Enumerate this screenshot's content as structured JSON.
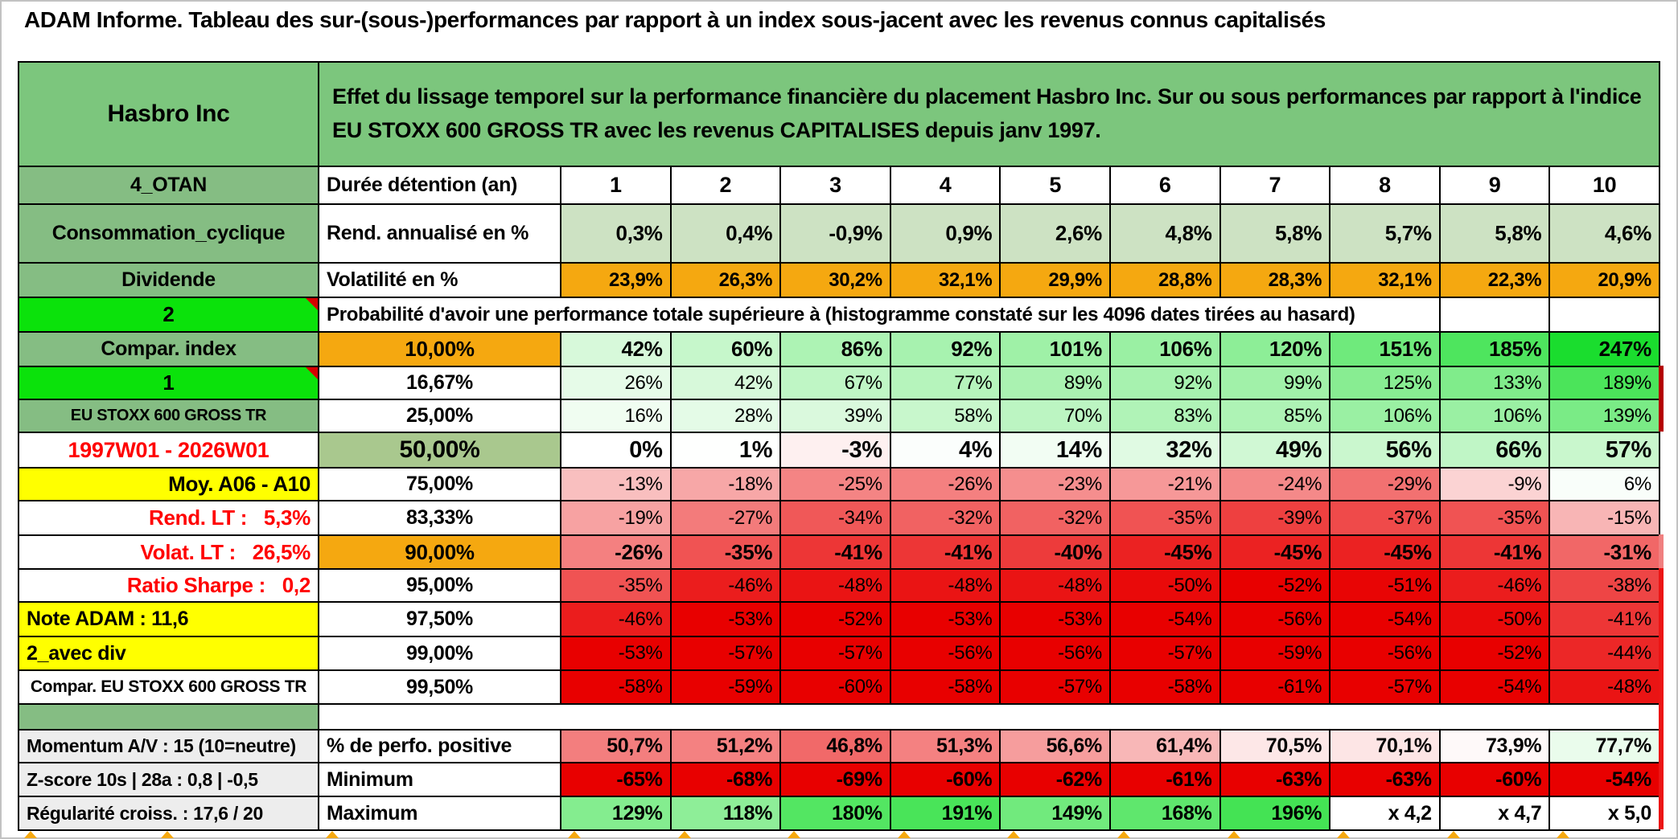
{
  "title": "ADAM Informe. Tableau des sur-(sous-)performances par rapport à un index sous-jacent avec les revenus connus capitalisés",
  "header": {
    "instrument": "Hasbro Inc",
    "description": "Effet du lissage temporel sur la performance financière du placement Hasbro Inc. Sur ou sous performances par rapport à l'indice EU STOXX 600 GROSS TR avec les revenus CAPITALISES depuis janv 1997."
  },
  "colors": {
    "green_header": "#7CC67D",
    "green_label": "#85BD83",
    "green_olive": "#A9C88E",
    "green_bright": "#0BE20B",
    "orange": "#F5A810",
    "yellow": "#FFFF00",
    "gray": "#EDEDED",
    "sage": "#CDE2C3",
    "red_text": "#FF0000",
    "marker_red": "#D60000",
    "edge_strip_dark_red": "#B40000",
    "edge_strip_pink": "#F08080",
    "edge_strip_red": "#EC1515",
    "border": "#000000"
  },
  "table": {
    "rows": [
      {
        "id": "duree",
        "left": {
          "t": "4_OTAN",
          "bg": "label",
          "fs": 25,
          "al": "c"
        },
        "mid": {
          "t": "Durée détention (an)",
          "fs": 25,
          "al": "l"
        },
        "mode": "text",
        "bold": true,
        "al": "c",
        "fs": 27,
        "cells": [
          "1",
          "2",
          "3",
          "4",
          "5",
          "6",
          "7",
          "8",
          "9",
          "10"
        ]
      },
      {
        "id": "rend",
        "left": {
          "t": "Consommation_cyclique",
          "bg": "label",
          "fs": 25,
          "al": "c"
        },
        "mid": {
          "t": "Rend. annualisé en %",
          "fs": 25,
          "al": "l"
        },
        "mode": "fixed",
        "bg": "sage",
        "bold": true,
        "al": "r",
        "fs": 26,
        "cells": [
          "0,3%",
          "0,4%",
          "-0,9%",
          "0,9%",
          "2,6%",
          "4,8%",
          "5,8%",
          "5,7%",
          "5,8%",
          "4,6%"
        ]
      },
      {
        "id": "volat",
        "left": {
          "t": "Dividende",
          "bg": "label",
          "fs": 25,
          "al": "c"
        },
        "mid": {
          "t": "Volatilité en %",
          "fs": 25,
          "al": "l"
        },
        "mode": "fixed",
        "bg": "orange",
        "bold": true,
        "al": "r",
        "fs": 24,
        "cells": [
          "23,9%",
          "26,3%",
          "30,2%",
          "32,1%",
          "29,9%",
          "28,8%",
          "28,3%",
          "32,1%",
          "22,3%",
          "20,9%"
        ]
      },
      {
        "id": "proba",
        "type": "span",
        "left": {
          "t": "2",
          "bg": "bright",
          "fs": 26,
          "al": "c",
          "marker": true
        },
        "span": {
          "t": "Probabilité d'avoir une performance totale supérieure à (histogramme constaté sur les 4096 dates tirées au hasard)",
          "fs": 24
        }
      },
      {
        "id": "p10",
        "left": {
          "t": "Compar. index",
          "bg": "label",
          "fs": 25,
          "al": "c"
        },
        "mid": {
          "t": "10,00%",
          "bg": "orange",
          "fs": 26,
          "al": "c"
        },
        "mode": "heat",
        "bold": true,
        "al": "r",
        "fs": 26,
        "cells": [
          "42%",
          "60%",
          "86%",
          "92%",
          "101%",
          "106%",
          "120%",
          "151%",
          "185%",
          "247%"
        ]
      },
      {
        "id": "p16",
        "left": {
          "t": "1",
          "bg": "bright",
          "fs": 26,
          "al": "c",
          "marker": true
        },
        "mid": {
          "t": "16,67%",
          "fs": 25,
          "al": "c"
        },
        "mode": "heat",
        "bold": false,
        "al": "r",
        "fs": 24,
        "cells": [
          "26%",
          "42%",
          "67%",
          "77%",
          "89%",
          "92%",
          "99%",
          "125%",
          "133%",
          "189%"
        ]
      },
      {
        "id": "p25",
        "left": {
          "t": "EU STOXX 600 GROSS TR",
          "bg": "label",
          "fs": 20,
          "al": "c"
        },
        "mid": {
          "t": "25,00%",
          "fs": 25,
          "al": "c"
        },
        "mode": "heat",
        "bold": false,
        "al": "r",
        "fs": 24,
        "cells": [
          "16%",
          "28%",
          "39%",
          "58%",
          "70%",
          "83%",
          "85%",
          "106%",
          "106%",
          "139%"
        ]
      },
      {
        "id": "p50",
        "left": {
          "t": "1997W01 - 2026W01",
          "color": "#FF0000",
          "fs": 27,
          "al": "c"
        },
        "mid": {
          "t": "50,00%",
          "bg": "olive",
          "fs": 30,
          "al": "c"
        },
        "mode": "heat",
        "bold": true,
        "al": "r",
        "fs": 29,
        "cells": [
          "0%",
          "1%",
          "-3%",
          "4%",
          "14%",
          "32%",
          "49%",
          "56%",
          "66%",
          "57%"
        ]
      },
      {
        "id": "p75",
        "left": {
          "t": "Moy. A06 - A10",
          "bg": "yellow",
          "fs": 26,
          "al": "r"
        },
        "mid": {
          "t": "75,00%",
          "fs": 25,
          "al": "c"
        },
        "mode": "heat",
        "bold": false,
        "al": "r",
        "fs": 24,
        "cells": [
          "-13%",
          "-18%",
          "-25%",
          "-26%",
          "-23%",
          "-21%",
          "-24%",
          "-29%",
          "-9%",
          "6%"
        ]
      },
      {
        "id": "p83",
        "left": {
          "t": "Rend. LT :   5,3%",
          "color": "#FF0000",
          "fs": 26,
          "al": "r"
        },
        "mid": {
          "t": "83,33%",
          "fs": 25,
          "al": "c"
        },
        "mode": "heat",
        "bold": false,
        "al": "r",
        "fs": 24,
        "cells": [
          "-19%",
          "-27%",
          "-34%",
          "-32%",
          "-32%",
          "-35%",
          "-39%",
          "-37%",
          "-35%",
          "-15%"
        ]
      },
      {
        "id": "p90",
        "left": {
          "t": "Volat. LT :   26,5%",
          "color": "#FF0000",
          "fs": 26,
          "al": "r"
        },
        "mid": {
          "t": "90,00%",
          "bg": "orange",
          "fs": 26,
          "al": "c"
        },
        "mode": "heat",
        "bold": true,
        "al": "r",
        "fs": 26,
        "cells": [
          "-26%",
          "-35%",
          "-41%",
          "-41%",
          "-40%",
          "-45%",
          "-45%",
          "-45%",
          "-41%",
          "-31%"
        ]
      },
      {
        "id": "p95",
        "left": {
          "t": "Ratio Sharpe :   0,2",
          "color": "#FF0000",
          "fs": 26,
          "al": "r"
        },
        "mid": {
          "t": "95,00%",
          "fs": 25,
          "al": "c"
        },
        "mode": "heat",
        "bold": false,
        "al": "r",
        "fs": 24,
        "cells": [
          "-35%",
          "-46%",
          "-48%",
          "-48%",
          "-48%",
          "-50%",
          "-52%",
          "-51%",
          "-46%",
          "-38%"
        ]
      },
      {
        "id": "p975",
        "left": {
          "t": "Note ADAM : 11,6",
          "bg": "yellow",
          "fs": 25,
          "al": "l"
        },
        "mid": {
          "t": "97,50%",
          "fs": 25,
          "al": "c"
        },
        "mode": "heat",
        "bold": false,
        "al": "r",
        "fs": 24,
        "cells": [
          "-46%",
          "-53%",
          "-52%",
          "-53%",
          "-53%",
          "-54%",
          "-56%",
          "-54%",
          "-50%",
          "-41%"
        ]
      },
      {
        "id": "p99",
        "left": {
          "t": "2_avec div",
          "bg": "yellow",
          "fs": 25,
          "al": "l"
        },
        "mid": {
          "t": "99,00%",
          "fs": 25,
          "al": "c"
        },
        "mode": "heat",
        "bold": false,
        "al": "r",
        "fs": 24,
        "cells": [
          "-53%",
          "-57%",
          "-57%",
          "-56%",
          "-56%",
          "-57%",
          "-59%",
          "-56%",
          "-52%",
          "-44%"
        ]
      },
      {
        "id": "p995",
        "left": {
          "t": "Compar. EU STOXX 600 GROSS TR",
          "fs": 21,
          "al": "c"
        },
        "mid": {
          "t": "99,50%",
          "fs": 25,
          "al": "c"
        },
        "mode": "heat",
        "bold": false,
        "al": "r",
        "fs": 24,
        "cells": [
          "-58%",
          "-59%",
          "-60%",
          "-58%",
          "-57%",
          "-58%",
          "-61%",
          "-57%",
          "-54%",
          "-48%"
        ]
      },
      {
        "id": "sep",
        "type": "separator",
        "left": {
          "t": "",
          "bg": "label"
        }
      },
      {
        "id": "perfo",
        "left": {
          "t": "Momentum A/V : 15 (10=neutre)",
          "bg": "gray",
          "fs": 23,
          "al": "l"
        },
        "mid": {
          "t": "% de perfo. positive",
          "fs": 25,
          "al": "l"
        },
        "mode": "perfo",
        "bold": true,
        "al": "r",
        "fs": 25,
        "cells": [
          "50,7%",
          "51,2%",
          "46,8%",
          "51,3%",
          "56,6%",
          "61,4%",
          "70,5%",
          "70,1%",
          "73,9%",
          "77,7%"
        ]
      },
      {
        "id": "min",
        "left": {
          "t": "Z-score 10s | 28a : 0,8 | -0,5",
          "bg": "gray",
          "fs": 23,
          "al": "l"
        },
        "mid": {
          "t": "Minimum",
          "fs": 25,
          "al": "l"
        },
        "mode": "heat",
        "bold": true,
        "al": "r",
        "fs": 25,
        "cells": [
          "-65%",
          "-68%",
          "-69%",
          "-60%",
          "-62%",
          "-61%",
          "-63%",
          "-63%",
          "-60%",
          "-54%"
        ]
      },
      {
        "id": "max",
        "left": {
          "t": "Régularité croiss. : 17,6 / 20",
          "bg": "gray",
          "fs": 23,
          "al": "l"
        },
        "mid": {
          "t": "Maximum",
          "fs": 25,
          "al": "l"
        },
        "mode": "heat",
        "bold": true,
        "al": "r",
        "fs": 25,
        "cells": [
          "129%",
          "118%",
          "180%",
          "191%",
          "149%",
          "168%",
          "196%",
          "x 4,2",
          "x 4,7",
          "x 5,0"
        ]
      }
    ]
  },
  "chart_data": {
    "type": "heatmap",
    "title": "Effet du lissage temporel sur la performance financière du placement Hasbro Inc. Sur ou sous performances par rapport à l'indice EU STOXX 600 GROSS TR avec les revenus CAPITALISES depuis janv 1997.",
    "xlabel": "Durée détention (an)",
    "x": [
      1,
      2,
      3,
      4,
      5,
      6,
      7,
      8,
      9,
      10
    ],
    "note": "Probabilité d'avoir une performance totale supérieure à (histogramme constaté sur les 4096 dates tirées au hasard)",
    "series": [
      {
        "name": "Rend. annualisé en %",
        "values": [
          0.3,
          0.4,
          -0.9,
          0.9,
          2.6,
          4.8,
          5.8,
          5.7,
          5.8,
          4.6
        ]
      },
      {
        "name": "Volatilité en %",
        "values": [
          23.9,
          26.3,
          30.2,
          32.1,
          29.9,
          28.8,
          28.3,
          32.1,
          22.3,
          20.9
        ]
      },
      {
        "name": "Percentile 10,00%",
        "values": [
          42,
          60,
          86,
          92,
          101,
          106,
          120,
          151,
          185,
          247
        ]
      },
      {
        "name": "Percentile 16,67%",
        "values": [
          26,
          42,
          67,
          77,
          89,
          92,
          99,
          125,
          133,
          189
        ]
      },
      {
        "name": "Percentile 25,00%",
        "values": [
          16,
          28,
          39,
          58,
          70,
          83,
          85,
          106,
          106,
          139
        ]
      },
      {
        "name": "Percentile 50,00%",
        "values": [
          0,
          1,
          -3,
          4,
          14,
          32,
          49,
          56,
          66,
          57
        ]
      },
      {
        "name": "Percentile 75,00%",
        "values": [
          -13,
          -18,
          -25,
          -26,
          -23,
          -21,
          -24,
          -29,
          -9,
          6
        ]
      },
      {
        "name": "Percentile 83,33%",
        "values": [
          -19,
          -27,
          -34,
          -32,
          -32,
          -35,
          -39,
          -37,
          -35,
          -15
        ]
      },
      {
        "name": "Percentile 90,00%",
        "values": [
          -26,
          -35,
          -41,
          -41,
          -40,
          -45,
          -45,
          -45,
          -41,
          -31
        ]
      },
      {
        "name": "Percentile 95,00%",
        "values": [
          -35,
          -46,
          -48,
          -48,
          -48,
          -50,
          -52,
          -51,
          -46,
          -38
        ]
      },
      {
        "name": "Percentile 97,50%",
        "values": [
          -46,
          -53,
          -52,
          -53,
          -53,
          -54,
          -56,
          -54,
          -50,
          -41
        ]
      },
      {
        "name": "Percentile 99,00%",
        "values": [
          -53,
          -57,
          -57,
          -56,
          -56,
          -57,
          -59,
          -56,
          -52,
          -44
        ]
      },
      {
        "name": "Percentile 99,50%",
        "values": [
          -58,
          -59,
          -60,
          -58,
          -57,
          -58,
          -61,
          -57,
          -54,
          -48
        ]
      },
      {
        "name": "% de perfo. positive",
        "values": [
          50.7,
          51.2,
          46.8,
          51.3,
          56.6,
          61.4,
          70.5,
          70.1,
          73.9,
          77.7
        ]
      },
      {
        "name": "Minimum",
        "values": [
          -65,
          -68,
          -69,
          -60,
          -62,
          -61,
          -63,
          -63,
          -60,
          -54
        ]
      },
      {
        "name": "Maximum",
        "values": [
          129,
          118,
          180,
          191,
          149,
          168,
          196,
          null,
          null,
          null
        ],
        "labels_last": [
          "x 4,2",
          "x 4,7",
          "x 5,0"
        ]
      }
    ]
  }
}
